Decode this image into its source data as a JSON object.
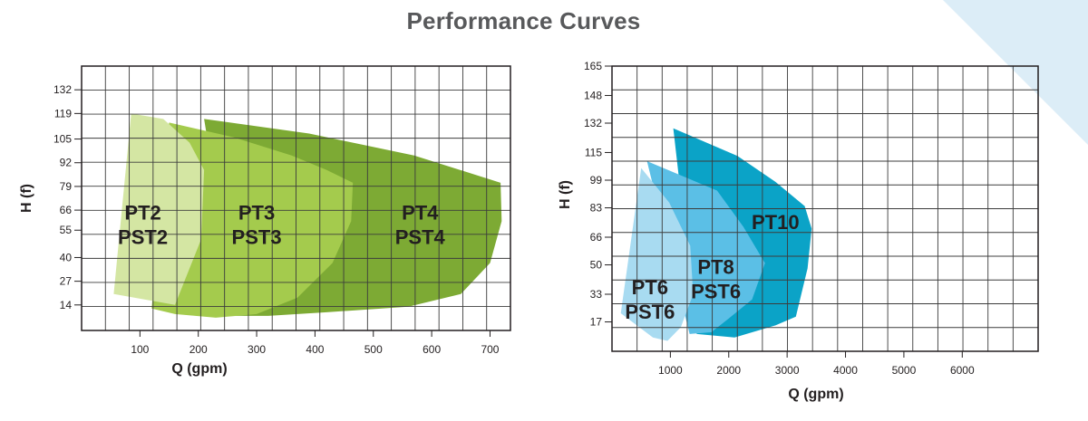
{
  "page": {
    "title": "Performance Curves",
    "colors": {
      "title": "#58595b",
      "accent": "#dcedf7"
    }
  },
  "chart_data": [
    {
      "type": "area",
      "xlabel": "Q (gpm)",
      "ylabel": "H (f)",
      "xlim": [
        0,
        735
      ],
      "ylim": [
        0,
        145
      ],
      "x_ticks": [
        100,
        200,
        300,
        400,
        500,
        600,
        700
      ],
      "y_ticks": [
        14,
        27,
        40,
        55,
        66,
        79,
        92,
        105,
        119,
        132
      ],
      "grid": true,
      "series": [
        {
          "name": "PT4 PST4",
          "label_lines": [
            "PT4",
            "PST4"
          ],
          "color": "#7daa34",
          "label_at": [
            580,
            58
          ],
          "x": [
            210,
            390,
            570,
            718,
            720,
            700,
            650,
            560,
            420,
            320,
            265,
            210
          ],
          "y": [
            116,
            108,
            96,
            81,
            60,
            37,
            20,
            13,
            10,
            8,
            8,
            116
          ]
        },
        {
          "name": "PT3 PST3",
          "label_lines": [
            "PT3",
            "PST3"
          ],
          "color": "#a4cb4d",
          "label_at": [
            300,
            58
          ],
          "x": [
            150,
            260,
            360,
            420,
            465,
            462,
            430,
            370,
            300,
            230,
            160,
            120,
            150
          ],
          "y": [
            114,
            106,
            96,
            88,
            81,
            60,
            37,
            18,
            9,
            7,
            9,
            12,
            114
          ]
        },
        {
          "name": "PT2 PST2",
          "label_lines": [
            "PT2",
            "PST2"
          ],
          "color": "#d4e6a3",
          "label_at": [
            105,
            58
          ],
          "x": [
            85,
            140,
            185,
            210,
            205,
            160,
            55,
            85
          ],
          "y": [
            119,
            116,
            103,
            88,
            50,
            14,
            20,
            119
          ]
        }
      ]
    },
    {
      "type": "area",
      "xlabel": "Q (gpm)",
      "ylabel": "H (f)",
      "xlim": [
        0,
        7300
      ],
      "ylim": [
        0,
        165
      ],
      "x_ticks": [
        1000,
        2000,
        3000,
        4000,
        5000,
        6000
      ],
      "y_ticks": [
        17,
        33,
        50,
        66,
        83,
        99,
        115,
        132,
        148,
        165
      ],
      "grid": true,
      "series": [
        {
          "name": "PT10",
          "label_lines": [
            "PT10"
          ],
          "color": "#0ba3c7",
          "label_at": [
            2800,
            75
          ],
          "x": [
            1050,
            2150,
            2800,
            3300,
            3420,
            3350,
            3150,
            2800,
            2100,
            1450,
            1050
          ],
          "y": [
            129,
            113,
            98,
            84,
            71,
            48,
            20,
            15,
            8,
            10,
            129
          ]
        },
        {
          "name": "PT8 PST6",
          "label_lines": [
            "PT8",
            "PST6"
          ],
          "color": "#5bbfe6",
          "label_at": [
            1780,
            42
          ],
          "x": [
            600,
            1800,
            2250,
            2620,
            2400,
            2000,
            1700,
            1330,
            600
          ],
          "y": [
            110,
            93,
            72,
            51,
            30,
            19,
            11,
            10,
            110
          ]
        },
        {
          "name": "PT6 PST6",
          "label_lines": [
            "PT6",
            "PST6"
          ],
          "color": "#a8dbf1",
          "label_at": [
            650,
            30
          ],
          "x": [
            500,
            980,
            1340,
            1390,
            1180,
            950,
            700,
            150,
            500
          ],
          "y": [
            106,
            86,
            61,
            33,
            14,
            6,
            8,
            22,
            106
          ]
        }
      ]
    }
  ]
}
